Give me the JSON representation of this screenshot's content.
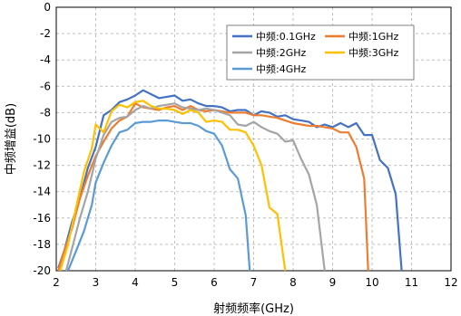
{
  "chart_data": {
    "type": "line",
    "title": "",
    "xlabel": "射频频率(GHz)",
    "ylabel": "中频增益(dB)",
    "xlim": [
      2,
      12
    ],
    "ylim": [
      -20,
      0
    ],
    "xticks": [
      2,
      3,
      4,
      5,
      6,
      7,
      8,
      9,
      10,
      11,
      12
    ],
    "yticks": [
      0,
      -2,
      -4,
      -6,
      -8,
      -10,
      -12,
      -14,
      -16,
      -18,
      -20
    ],
    "grid": true,
    "legend_position": "top-right",
    "series": [
      {
        "name": "中频:0.1GHz",
        "color": "#4472C4",
        "x": [
          2.05,
          2.2,
          2.4,
          2.6,
          2.8,
          3.0,
          3.2,
          3.4,
          3.6,
          3.8,
          4.0,
          4.2,
          4.4,
          4.6,
          4.8,
          5.0,
          5.2,
          5.4,
          5.6,
          5.8,
          6.0,
          6.2,
          6.4,
          6.6,
          6.8,
          7.0,
          7.2,
          7.4,
          7.6,
          7.8,
          8.0,
          8.2,
          8.4,
          8.6,
          8.8,
          9.0,
          9.2,
          9.4,
          9.6,
          9.8,
          10.0,
          10.2,
          10.4,
          10.6,
          10.75
        ],
        "y": [
          -19.8,
          -18.5,
          -16.3,
          -14.5,
          -12.2,
          -10.6,
          -8.2,
          -7.8,
          -7.2,
          -7.0,
          -6.7,
          -6.3,
          -6.6,
          -6.9,
          -6.8,
          -6.7,
          -7.1,
          -7.0,
          -7.3,
          -7.5,
          -7.5,
          -7.6,
          -7.9,
          -7.8,
          -7.8,
          -8.2,
          -7.9,
          -8.0,
          -8.3,
          -8.2,
          -8.5,
          -8.6,
          -8.7,
          -9.1,
          -8.9,
          -9.1,
          -8.8,
          -9.1,
          -8.8,
          -9.7,
          -9.7,
          -11.6,
          -12.2,
          -14.2,
          -20.0
        ]
      },
      {
        "name": "中频:1GHz",
        "color": "#ED7D31",
        "x": [
          2.05,
          2.2,
          2.4,
          2.6,
          2.8,
          3.0,
          3.2,
          3.4,
          3.6,
          3.8,
          4.0,
          4.2,
          4.4,
          4.6,
          4.8,
          5.0,
          5.2,
          5.4,
          5.6,
          5.8,
          6.0,
          6.2,
          6.4,
          6.6,
          6.8,
          7.0,
          7.2,
          7.4,
          7.6,
          7.8,
          8.0,
          8.2,
          8.4,
          8.6,
          8.8,
          9.0,
          9.2,
          9.4,
          9.6,
          9.8,
          9.9
        ],
        "y": [
          -20.0,
          -18.5,
          -16.8,
          -14.5,
          -12.8,
          -11.3,
          -10.2,
          -9.2,
          -8.6,
          -8.3,
          -7.3,
          -7.6,
          -7.7,
          -7.8,
          -7.6,
          -7.5,
          -7.8,
          -7.5,
          -7.8,
          -7.9,
          -7.8,
          -7.9,
          -8.0,
          -8.0,
          -8.0,
          -8.2,
          -8.2,
          -8.3,
          -8.4,
          -8.6,
          -8.8,
          -8.9,
          -9.0,
          -9.0,
          -9.1,
          -9.2,
          -9.5,
          -9.5,
          -10.6,
          -13.0,
          -20.0
        ]
      },
      {
        "name": "中频:2GHz",
        "color": "#A5A5A5",
        "x": [
          2.25,
          2.4,
          2.6,
          2.8,
          3.0,
          3.2,
          3.4,
          3.6,
          3.8,
          4.0,
          4.2,
          4.4,
          4.6,
          4.8,
          5.0,
          5.2,
          5.4,
          5.6,
          5.8,
          6.0,
          6.2,
          6.4,
          6.6,
          6.8,
          7.0,
          7.2,
          7.4,
          7.6,
          7.8,
          8.0,
          8.2,
          8.4,
          8.6,
          8.8
        ],
        "y": [
          -20.0,
          -18.3,
          -16.0,
          -14.0,
          -11.5,
          -9.7,
          -8.7,
          -8.4,
          -8.3,
          -7.8,
          -7.5,
          -7.7,
          -7.5,
          -7.4,
          -7.3,
          -7.6,
          -7.7,
          -7.8,
          -7.7,
          -7.8,
          -8.0,
          -8.2,
          -8.9,
          -9.0,
          -8.7,
          -9.1,
          -9.4,
          -9.6,
          -10.2,
          -10.1,
          -11.5,
          -12.7,
          -15.0,
          -20.0
        ]
      },
      {
        "name": "中频:3GHz",
        "color": "#FFC000",
        "x": [
          2.1,
          2.3,
          2.5,
          2.7,
          2.9,
          3.0,
          3.2,
          3.4,
          3.6,
          3.8,
          4.0,
          4.2,
          4.4,
          4.6,
          4.8,
          5.0,
          5.2,
          5.4,
          5.6,
          5.8,
          6.0,
          6.2,
          6.4,
          6.6,
          6.8,
          7.0,
          7.2,
          7.4,
          7.6,
          7.8
        ],
        "y": [
          -20.0,
          -18.0,
          -15.2,
          -12.5,
          -10.7,
          -8.9,
          -9.5,
          -7.9,
          -7.4,
          -7.6,
          -7.2,
          -7.1,
          -7.5,
          -7.7,
          -7.7,
          -7.8,
          -8.1,
          -7.8,
          -8.0,
          -8.7,
          -8.6,
          -8.7,
          -9.3,
          -9.3,
          -9.5,
          -10.5,
          -12.0,
          -15.2,
          -15.7,
          -20.0
        ]
      },
      {
        "name": "中频:4GHz",
        "color": "#5B9BD5",
        "x": [
          2.3,
          2.5,
          2.7,
          2.9,
          3.0,
          3.2,
          3.4,
          3.6,
          3.8,
          4.0,
          4.2,
          4.4,
          4.6,
          4.8,
          5.0,
          5.2,
          5.4,
          5.6,
          5.8,
          6.0,
          6.2,
          6.4,
          6.6,
          6.8,
          6.9
        ],
        "y": [
          -20.0,
          -18.5,
          -17.0,
          -15.0,
          -13.3,
          -11.8,
          -10.5,
          -9.5,
          -9.3,
          -8.8,
          -8.7,
          -8.7,
          -8.6,
          -8.6,
          -8.7,
          -8.8,
          -8.8,
          -9.0,
          -9.4,
          -9.6,
          -10.5,
          -12.3,
          -13.0,
          -15.8,
          -20.0
        ]
      }
    ]
  }
}
